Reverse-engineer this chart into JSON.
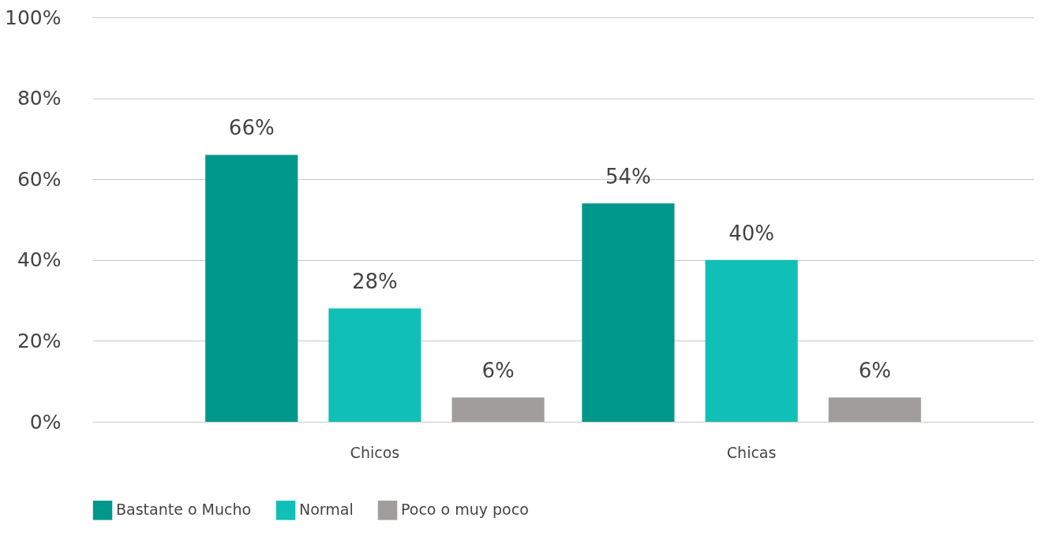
{
  "chart_data": {
    "type": "bar",
    "categories": [
      "Chicos",
      "Chicas"
    ],
    "series": [
      {
        "name": "Bastante o Mucho",
        "color": "#00978c",
        "values": [
          66,
          54
        ],
        "value_labels": [
          "66%",
          "54%"
        ]
      },
      {
        "name": "Normal",
        "color": "#10bfb5",
        "values": [
          28,
          40
        ],
        "value_labels": [
          "28%",
          "40%"
        ]
      },
      {
        "name": "Poco o muy poco",
        "color": "#a19d9d",
        "values": [
          6,
          6
        ],
        "value_labels": [
          "6%",
          "6%"
        ]
      }
    ],
    "ylim": [
      0,
      100
    ],
    "yticks": [
      {
        "value": 0,
        "label": "0%"
      },
      {
        "value": 20,
        "label": "20%"
      },
      {
        "value": 40,
        "label": "40%"
      },
      {
        "value": 60,
        "label": "60%"
      },
      {
        "value": 80,
        "label": "80%"
      },
      {
        "value": 100,
        "label": "100%"
      }
    ],
    "grid": "y",
    "legend": "bottom"
  }
}
